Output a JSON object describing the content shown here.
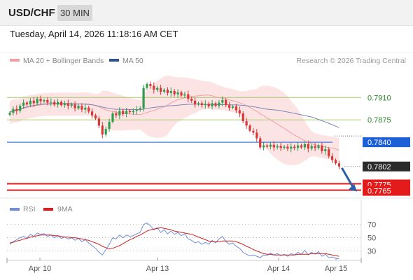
{
  "header": {
    "symbol": "USD/CHF",
    "interval": "30 MIN",
    "timestamp": "Tuesday, April 14, 2026 11:18:16 AM CET"
  },
  "legend": {
    "ma20": "MA 20 + Bollinger Bands",
    "ma50": "MA 50",
    "copyright": "Research © 2026 Trading Central"
  },
  "rsi_legend": {
    "rsi": "RSI",
    "ma9": "9MA"
  },
  "colors": {
    "up": "#2e9e4e",
    "down": "#d93636",
    "ma20": "#f0a0a0",
    "band_fill": "#fde4e4",
    "ma50": "#7a86b8",
    "blue_level": "#1c60d8",
    "red_level": "#e31b1b",
    "green_level": "#a8c870",
    "rsi": "#6f8fdc",
    "rsi_ma": "#cc2222"
  },
  "chart_data": [
    {
      "type": "candlestick",
      "x_tick_labels": [
        "Apr 10",
        "Apr 13",
        "Apr 14",
        "Apr 15"
      ],
      "y_range": [
        0.7758,
        0.7953
      ],
      "price_levels": [
        {
          "value": 0.791,
          "label": "0.7910",
          "kind": "resistance"
        },
        {
          "value": 0.7875,
          "label": "0.7875",
          "kind": "resistance"
        },
        {
          "value": 0.784,
          "label": "0.7840",
          "kind": "pivot"
        },
        {
          "value": 0.7802,
          "label": "0.7802",
          "kind": "last"
        },
        {
          "value": 0.7775,
          "label": "0.7775",
          "kind": "support"
        },
        {
          "value": 0.7765,
          "label": "0.7765",
          "kind": "support"
        }
      ],
      "close": [
        0.7886,
        0.7892,
        0.7889,
        0.7897,
        0.7902,
        0.7899,
        0.7905,
        0.7901,
        0.7908,
        0.7904,
        0.7906,
        0.7902,
        0.7903,
        0.7899,
        0.7903,
        0.7898,
        0.7901,
        0.7897,
        0.7899,
        0.7893,
        0.7897,
        0.7891,
        0.7894,
        0.7888,
        0.7882,
        0.7877,
        0.7866,
        0.7852,
        0.7861,
        0.7872,
        0.7885,
        0.7882,
        0.7889,
        0.7884,
        0.7889,
        0.7887,
        0.7889,
        0.7891,
        0.7893,
        0.7925,
        0.7931,
        0.7928,
        0.7922,
        0.7925,
        0.7919,
        0.7922,
        0.7917,
        0.792,
        0.7915,
        0.7918,
        0.7913,
        0.7915,
        0.7908,
        0.7905,
        0.7899,
        0.7901,
        0.7898,
        0.79,
        0.7896,
        0.7901,
        0.7897,
        0.7902,
        0.7906,
        0.7898,
        0.7894,
        0.7896,
        0.789,
        0.7885,
        0.7873,
        0.7866,
        0.7858,
        0.7855,
        0.7846,
        0.7832,
        0.7835,
        0.7833,
        0.7836,
        0.7832,
        0.7834,
        0.7831,
        0.7833,
        0.783,
        0.7833,
        0.7831,
        0.7835,
        0.7832,
        0.7837,
        0.783,
        0.7834,
        0.7831,
        0.7835,
        0.7826,
        0.7829,
        0.7818,
        0.7812,
        0.7807,
        0.7802
      ]
    },
    {
      "type": "line",
      "title": "RSI",
      "y_range": [
        20,
        78
      ],
      "y_ticks": [
        70,
        50,
        30
      ],
      "series": [
        {
          "name": "RSI",
          "values": [
            40,
            44,
            47,
            50,
            52,
            50,
            55,
            52,
            57,
            55,
            56,
            52,
            54,
            50,
            53,
            49,
            51,
            48,
            50,
            46,
            49,
            44,
            47,
            42,
            38,
            34,
            28,
            24,
            32,
            40,
            50,
            48,
            54,
            50,
            54,
            52,
            53,
            56,
            58,
            70,
            72,
            68,
            62,
            65,
            58,
            62,
            56,
            60,
            55,
            58,
            53,
            56,
            48,
            46,
            42,
            44,
            40,
            43,
            40,
            46,
            42,
            48,
            52,
            44,
            40,
            42,
            37,
            34,
            28,
            25,
            23,
            24,
            22,
            20,
            24,
            23,
            27,
            24,
            26,
            23,
            25,
            22,
            26,
            24,
            28,
            25,
            31,
            24,
            28,
            25,
            29,
            22,
            25,
            20,
            21,
            19,
            18
          ]
        },
        {
          "name": "9MA",
          "values": [
            42,
            43,
            45,
            46,
            48,
            49,
            51,
            52,
            53,
            54,
            54,
            54,
            54,
            53,
            53,
            52,
            51,
            51,
            50,
            50,
            49,
            48,
            47,
            46,
            44,
            42,
            40,
            37,
            35,
            33,
            34,
            36,
            38,
            41,
            44,
            47,
            49,
            52,
            54,
            57,
            60,
            62,
            63,
            64,
            65,
            64,
            63,
            62,
            60,
            59,
            58,
            57,
            56,
            55,
            53,
            51,
            49,
            47,
            45,
            44,
            44,
            44,
            45,
            45,
            45,
            45,
            44,
            42,
            40,
            37,
            35,
            32,
            30,
            28,
            26,
            25,
            25,
            24,
            24,
            24,
            24,
            24,
            24,
            24,
            25,
            25,
            25,
            25,
            26,
            26,
            26,
            26,
            26,
            25,
            24,
            23,
            22
          ]
        }
      ]
    }
  ]
}
